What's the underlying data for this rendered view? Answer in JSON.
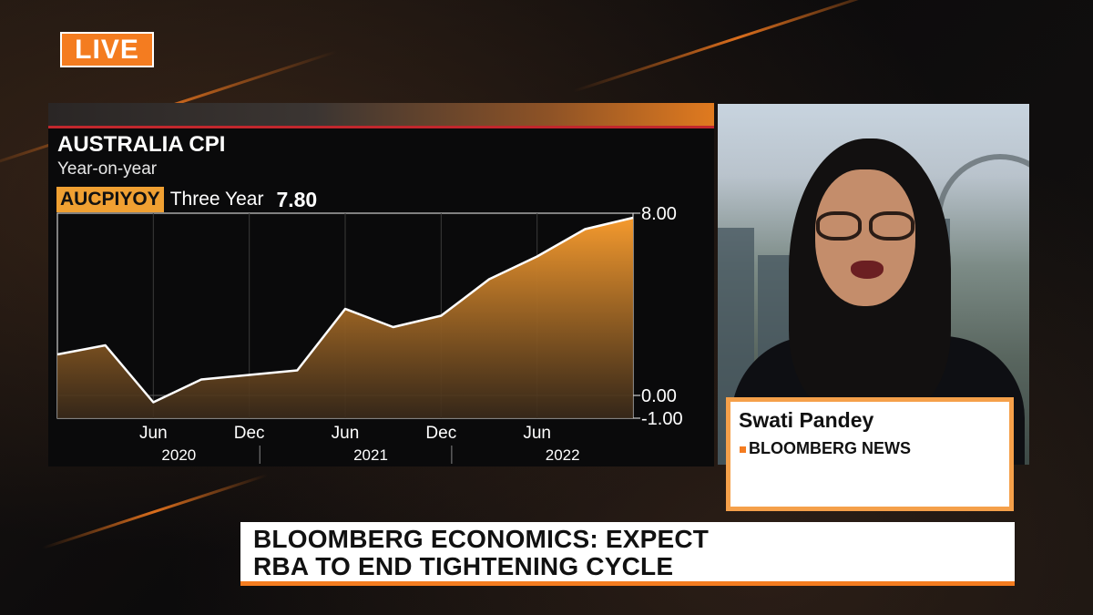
{
  "live_badge": "LIVE",
  "chart": {
    "title": "AUSTRALIA CPI",
    "subtitle": "Year-on-year",
    "ticker": "AUCPIYOY",
    "period": "Three Year",
    "last_value": "7.80"
  },
  "chart_data": {
    "type": "area",
    "title": "AUSTRALIA CPI",
    "subtitle": "Year-on-year",
    "x": [
      "2019-12",
      "2020-03",
      "2020-06",
      "2020-09",
      "2020-12",
      "2021-03",
      "2021-06",
      "2021-09",
      "2021-12",
      "2022-03",
      "2022-06",
      "2022-09",
      "2022-12"
    ],
    "series": [
      {
        "name": "AUCPIYOY",
        "values": [
          1.8,
          2.2,
          -0.3,
          0.7,
          0.9,
          1.1,
          3.8,
          3.0,
          3.5,
          5.1,
          6.1,
          7.3,
          7.8
        ]
      }
    ],
    "ylim": [
      -1.0,
      8.0
    ],
    "y_tick_labels": [
      "8.00",
      "0.00",
      "-1.00"
    ],
    "y_ticks": [
      8.0,
      0.0,
      -1.0
    ],
    "x_tick_labels": [
      "Jun",
      "Dec",
      "Jun",
      "Dec",
      "Jun"
    ],
    "x_tick_dates": [
      "2020-06",
      "2020-12",
      "2021-06",
      "2021-12",
      "2022-06"
    ],
    "x_year_labels": [
      "2020",
      "2021",
      "2022"
    ],
    "x_year_dates": [
      "2020-06",
      "2021-06",
      "2022-06"
    ],
    "grid": true,
    "colors": {
      "fill": "#f08a24",
      "line": "#ffffff",
      "background": "#0a0a0b"
    }
  },
  "speaker": {
    "name": "Swati Pandey",
    "organization": "BLOOMBERG NEWS"
  },
  "headline": {
    "line1": "BLOOMBERG ECONOMICS: EXPECT",
    "line2": "RBA TO END TIGHTENING CYCLE"
  },
  "colors": {
    "accent": "#f47c20",
    "ticker_bg": "#f0a032",
    "topline_red": "#c1272d"
  }
}
